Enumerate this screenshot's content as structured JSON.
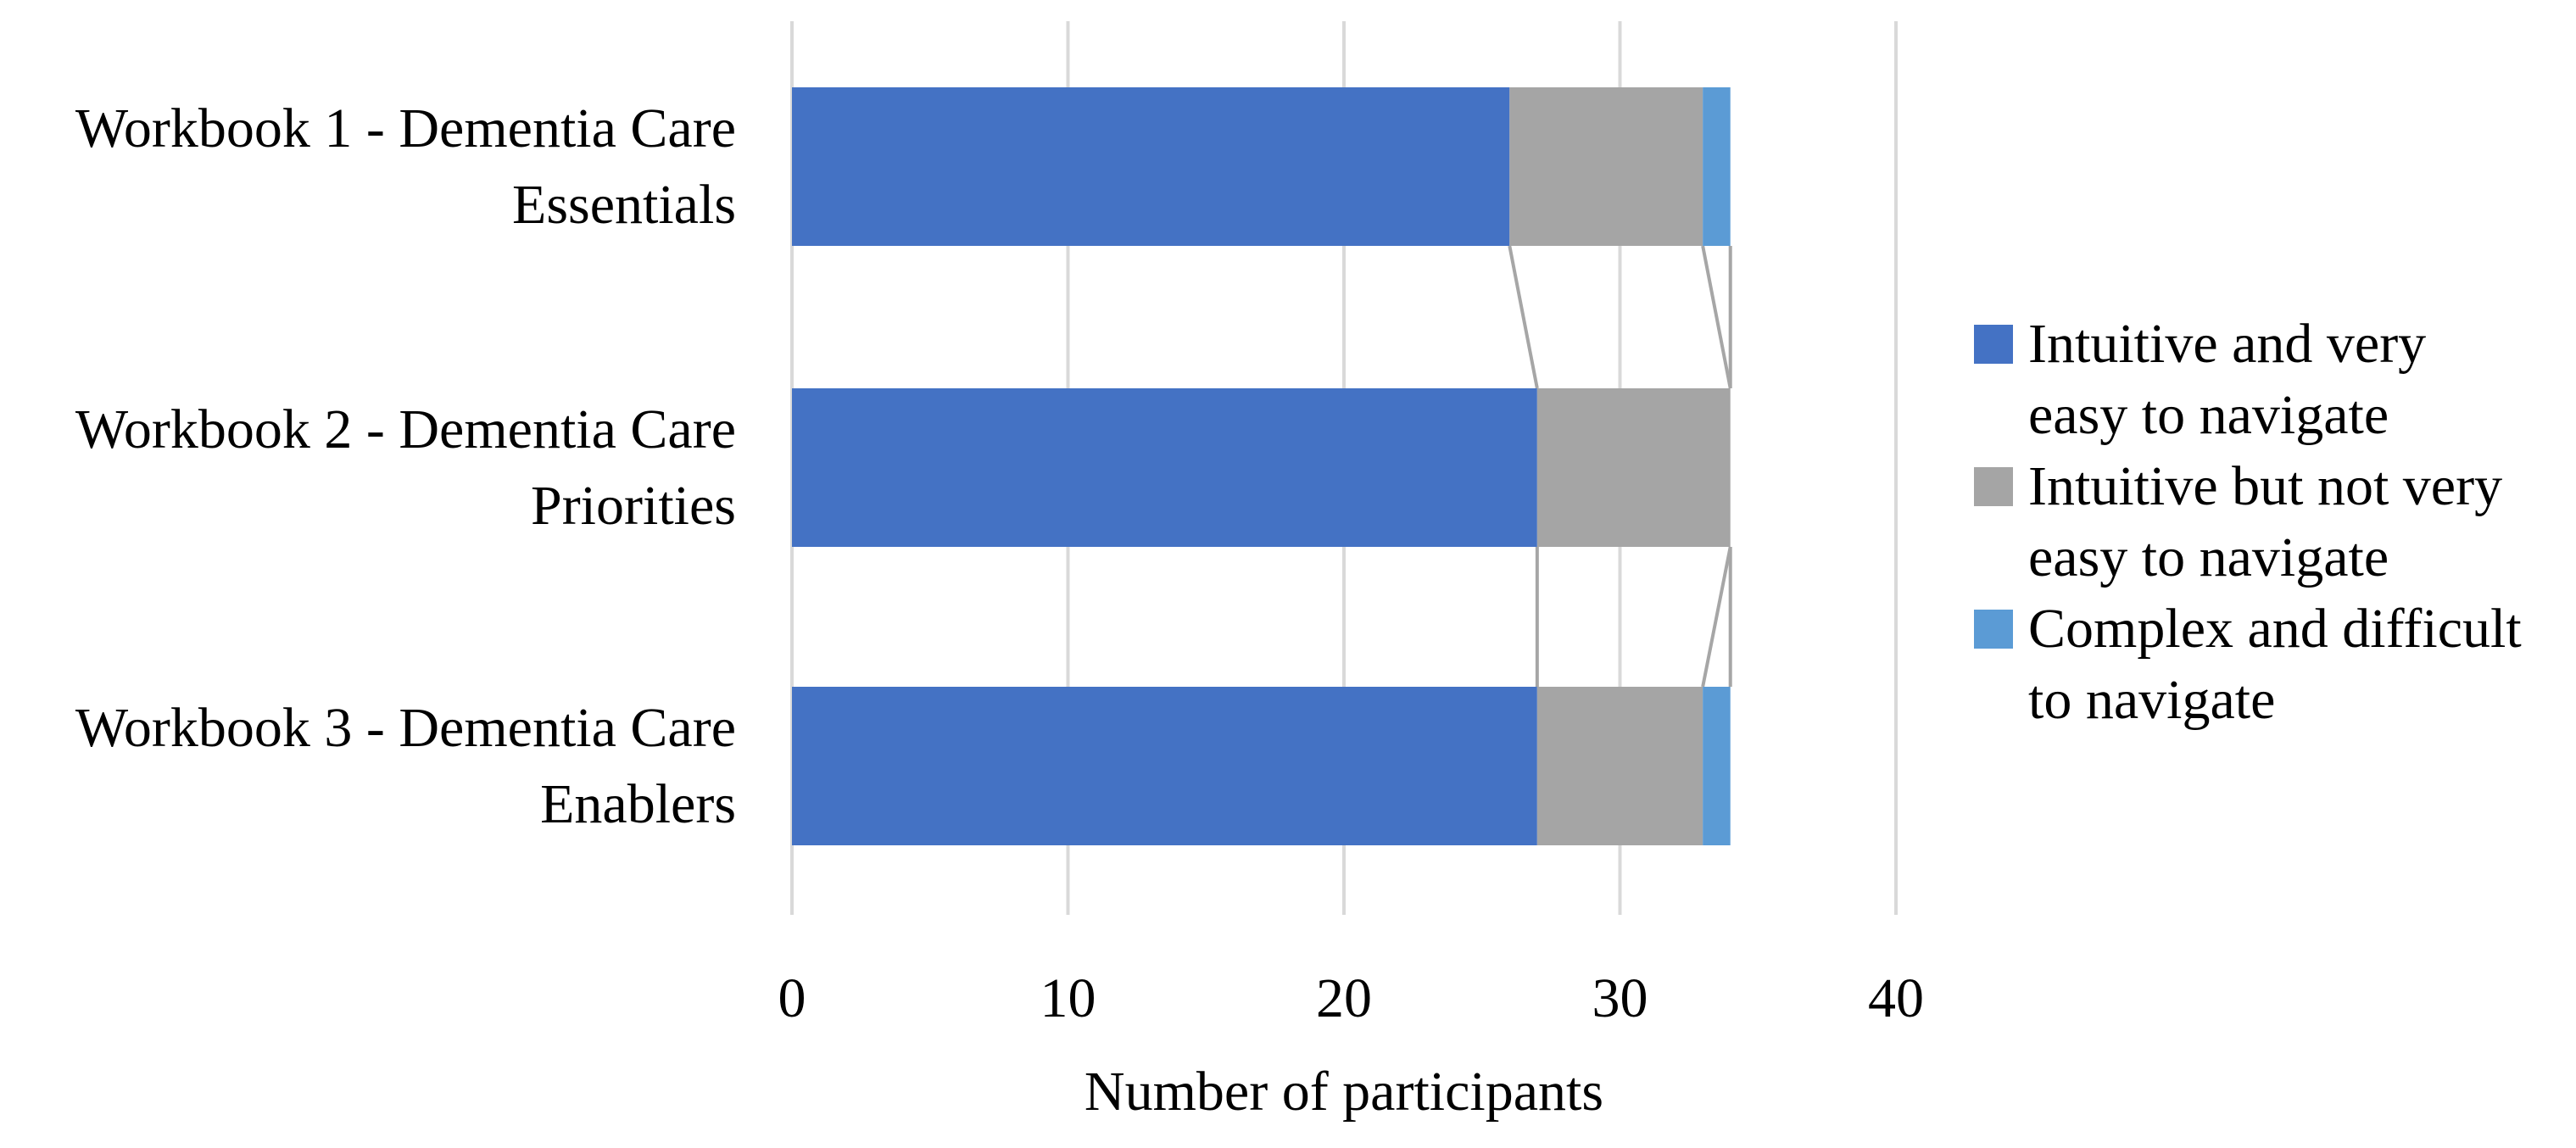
{
  "chart_data": {
    "type": "bar",
    "orientation": "horizontal",
    "stacked": true,
    "title": "",
    "xlabel": "Number of participants",
    "x_ticks": [
      0,
      10,
      20,
      30,
      40
    ],
    "xlim": [
      0,
      40
    ],
    "grid": "vertical",
    "legend_position": "right",
    "categories": [
      "Workbook 1 - Dementia Care Essentials",
      "Workbook 2 - Dementia Care Priorities",
      "Workbook 3 - Dementia Care Enablers"
    ],
    "category_label_lines": [
      [
        "Workbook 1 - Dementia Care",
        "Essentials"
      ],
      [
        "Workbook 2 - Dementia Care",
        "Priorities"
      ],
      [
        "Workbook 3 - Dementia Care",
        "Enablers"
      ]
    ],
    "series": [
      {
        "name": "Intuitive and very easy to navigate",
        "legend_lines": [
          "Intuitive and very",
          "easy to navigate"
        ],
        "color": "#4472C4",
        "values": [
          26,
          27,
          27
        ]
      },
      {
        "name": "Intuitive but not very easy to navigate",
        "legend_lines": [
          "Intuitive but not very",
          "easy to navigate"
        ],
        "color": "#A5A5A5",
        "values": [
          7,
          7,
          6
        ]
      },
      {
        "name": "Complex and difficult to navigate",
        "legend_lines": [
          "Complex and difficult",
          "to navigate"
        ],
        "color": "#5B9BD5",
        "values": [
          1,
          0,
          1
        ]
      }
    ],
    "bar_totals": [
      34,
      34,
      34
    ],
    "series_connector_lines": true,
    "colors": {
      "gridline": "#D9D9D9",
      "connector": "#A6A6A6",
      "text": "#000000",
      "background": "#FFFFFF"
    }
  }
}
